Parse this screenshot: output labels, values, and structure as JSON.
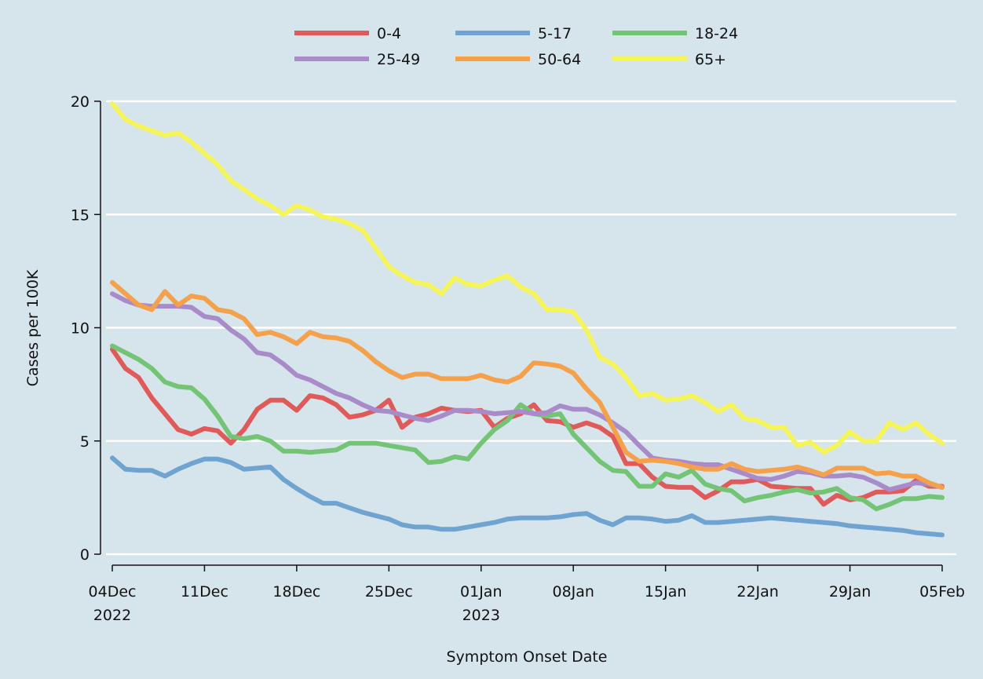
{
  "chart_data": {
    "type": "line",
    "xlabel": "Symptom Onset Date",
    "ylabel": "Cases per 100K",
    "x": [
      "2022-12-04",
      "2022-12-05",
      "2022-12-06",
      "2022-12-07",
      "2022-12-08",
      "2022-12-09",
      "2022-12-10",
      "2022-12-11",
      "2022-12-12",
      "2022-12-13",
      "2022-12-14",
      "2022-12-15",
      "2022-12-16",
      "2022-12-17",
      "2022-12-18",
      "2022-12-19",
      "2022-12-20",
      "2022-12-21",
      "2022-12-22",
      "2022-12-23",
      "2022-12-24",
      "2022-12-25",
      "2022-12-26",
      "2022-12-27",
      "2022-12-28",
      "2022-12-29",
      "2022-12-30",
      "2022-12-31",
      "2023-01-01",
      "2023-01-02",
      "2023-01-03",
      "2023-01-04",
      "2023-01-05",
      "2023-01-06",
      "2023-01-07",
      "2023-01-08",
      "2023-01-09",
      "2023-01-10",
      "2023-01-11",
      "2023-01-12",
      "2023-01-13",
      "2023-01-14",
      "2023-01-15",
      "2023-01-16",
      "2023-01-17",
      "2023-01-18",
      "2023-01-19",
      "2023-01-20",
      "2023-01-21",
      "2023-01-22",
      "2023-01-23",
      "2023-01-24",
      "2023-01-25",
      "2023-01-26",
      "2023-01-27",
      "2023-01-28",
      "2023-01-29",
      "2023-01-30",
      "2023-01-31",
      "2023-02-01",
      "2023-02-02",
      "2023-02-03",
      "2023-02-04",
      "2023-02-05"
    ],
    "xlim": [
      "2022-12-04",
      "2023-02-05"
    ],
    "xticks": [
      {
        "value": "2022-12-04",
        "label": "04Dec\n2022"
      },
      {
        "value": "2022-12-11",
        "label": "11Dec"
      },
      {
        "value": "2022-12-18",
        "label": "18Dec"
      },
      {
        "value": "2022-12-25",
        "label": "25Dec"
      },
      {
        "value": "2023-01-01",
        "label": "01Jan\n2023"
      },
      {
        "value": "2023-01-08",
        "label": "08Jan"
      },
      {
        "value": "2023-01-15",
        "label": "15Jan"
      },
      {
        "value": "2023-01-22",
        "label": "22Jan"
      },
      {
        "value": "2023-01-29",
        "label": "29Jan"
      },
      {
        "value": "2023-02-05",
        "label": "05Feb"
      }
    ],
    "ylim": [
      0,
      20
    ],
    "yticks": [
      0,
      5,
      10,
      15,
      20
    ],
    "grid": true,
    "legend": "top",
    "series": [
      {
        "name": "0-4",
        "color": "#e05a5a",
        "values": [
          9.05,
          8.2,
          7.8,
          6.9,
          6.2,
          5.5,
          5.3,
          5.55,
          5.45,
          4.9,
          5.5,
          6.4,
          6.8,
          6.8,
          6.35,
          7.0,
          6.9,
          6.6,
          6.05,
          6.15,
          6.35,
          6.8,
          5.6,
          6.05,
          6.2,
          6.45,
          6.35,
          6.3,
          6.35,
          5.6,
          6.0,
          6.2,
          6.6,
          5.9,
          5.85,
          5.6,
          5.8,
          5.6,
          5.2,
          4.0,
          4.0,
          3.4,
          3.0,
          2.95,
          2.95,
          2.5,
          2.8,
          3.2,
          3.2,
          3.3,
          3.0,
          2.95,
          2.9,
          2.9,
          2.2,
          2.6,
          2.4,
          2.5,
          2.75,
          2.75,
          2.8,
          3.25,
          3.0,
          3.0
        ]
      },
      {
        "name": "5-17",
        "color": "#6fa3d0",
        "values": [
          4.25,
          3.75,
          3.7,
          3.7,
          3.45,
          3.75,
          4.0,
          4.2,
          4.2,
          4.05,
          3.75,
          3.8,
          3.85,
          3.3,
          2.9,
          2.55,
          2.25,
          2.25,
          2.05,
          1.85,
          1.7,
          1.55,
          1.3,
          1.2,
          1.2,
          1.1,
          1.1,
          1.2,
          1.3,
          1.4,
          1.55,
          1.6,
          1.6,
          1.6,
          1.65,
          1.75,
          1.8,
          1.5,
          1.3,
          1.6,
          1.6,
          1.55,
          1.45,
          1.5,
          1.7,
          1.4,
          1.4,
          1.45,
          1.5,
          1.55,
          1.6,
          1.55,
          1.5,
          1.45,
          1.4,
          1.35,
          1.25,
          1.2,
          1.15,
          1.1,
          1.05,
          0.95,
          0.9,
          0.85
        ]
      },
      {
        "name": "18-24",
        "color": "#74c476",
        "values": [
          9.2,
          8.9,
          8.6,
          8.2,
          7.6,
          7.4,
          7.35,
          6.85,
          6.1,
          5.2,
          5.1,
          5.2,
          5.0,
          4.55,
          4.55,
          4.5,
          4.55,
          4.6,
          4.9,
          4.9,
          4.9,
          4.8,
          4.7,
          4.6,
          4.05,
          4.1,
          4.3,
          4.2,
          4.9,
          5.5,
          5.9,
          6.6,
          6.2,
          6.1,
          6.2,
          5.3,
          4.7,
          4.1,
          3.7,
          3.65,
          3.0,
          3.0,
          3.55,
          3.4,
          3.7,
          3.1,
          2.9,
          2.8,
          2.35,
          2.5,
          2.6,
          2.75,
          2.85,
          2.7,
          2.75,
          2.9,
          2.5,
          2.4,
          2.0,
          2.2,
          2.45,
          2.45,
          2.55,
          2.5
        ]
      },
      {
        "name": "25-49",
        "color": "#a98bc9",
        "values": [
          11.5,
          11.2,
          11.0,
          10.95,
          10.95,
          10.95,
          10.9,
          10.5,
          10.4,
          9.9,
          9.5,
          8.9,
          8.8,
          8.4,
          7.9,
          7.7,
          7.4,
          7.1,
          6.9,
          6.6,
          6.35,
          6.3,
          6.15,
          6.0,
          5.9,
          6.1,
          6.35,
          6.35,
          6.3,
          6.2,
          6.25,
          6.3,
          6.2,
          6.25,
          6.55,
          6.4,
          6.4,
          6.15,
          5.8,
          5.4,
          4.8,
          4.25,
          4.15,
          4.1,
          4.0,
          3.95,
          3.95,
          3.75,
          3.55,
          3.35,
          3.3,
          3.45,
          3.65,
          3.6,
          3.45,
          3.45,
          3.5,
          3.4,
          3.15,
          2.85,
          3.0,
          3.15,
          3.1,
          2.95
        ]
      },
      {
        "name": "50-64",
        "color": "#f5a04a",
        "values": [
          12.0,
          11.5,
          11.0,
          10.8,
          11.6,
          11.0,
          11.4,
          11.3,
          10.8,
          10.7,
          10.4,
          9.7,
          9.8,
          9.6,
          9.3,
          9.8,
          9.6,
          9.55,
          9.4,
          9.0,
          8.5,
          8.1,
          7.8,
          7.95,
          7.95,
          7.75,
          7.75,
          7.75,
          7.9,
          7.7,
          7.6,
          7.85,
          8.45,
          8.4,
          8.3,
          8.0,
          7.3,
          6.7,
          5.6,
          4.5,
          4.1,
          4.15,
          4.1,
          4.0,
          3.85,
          3.75,
          3.75,
          4.0,
          3.75,
          3.65,
          3.7,
          3.75,
          3.85,
          3.7,
          3.5,
          3.8,
          3.8,
          3.8,
          3.55,
          3.6,
          3.45,
          3.45,
          3.15,
          2.95
        ]
      },
      {
        "name": "65+",
        "color": "#f5f55a",
        "values": [
          19.9,
          19.2,
          18.9,
          18.7,
          18.5,
          18.6,
          18.2,
          17.7,
          17.2,
          16.5,
          16.1,
          15.7,
          15.4,
          15.0,
          15.4,
          15.2,
          14.9,
          14.8,
          14.6,
          14.3,
          13.5,
          12.7,
          12.3,
          12.0,
          11.9,
          11.5,
          12.2,
          11.9,
          11.85,
          12.1,
          12.3,
          11.8,
          11.5,
          10.8,
          10.8,
          10.7,
          9.9,
          8.7,
          8.4,
          7.8,
          7.0,
          7.1,
          6.8,
          6.85,
          7.0,
          6.7,
          6.3,
          6.6,
          6.0,
          5.9,
          5.6,
          5.6,
          4.8,
          4.95,
          4.5,
          4.8,
          5.4,
          5.0,
          5.0,
          5.8,
          5.5,
          5.8,
          5.3,
          4.9
        ]
      }
    ]
  }
}
